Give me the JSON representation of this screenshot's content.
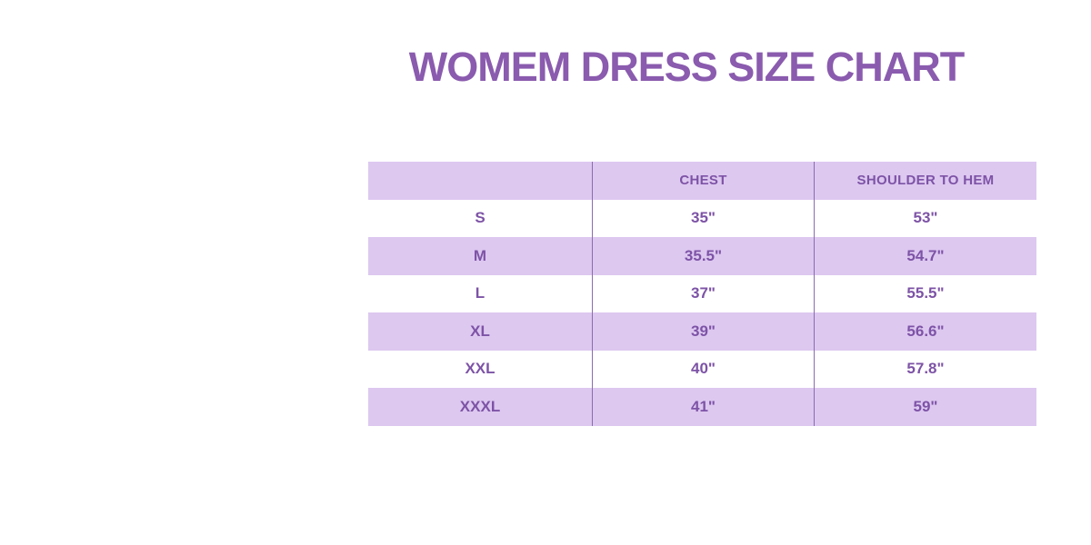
{
  "page": {
    "title": "WOMEM DRESS SIZE CHART"
  },
  "colors": {
    "background": "#ffffff",
    "title_purple": "#8a5bae",
    "band_purple": "#ddc8f0",
    "text_purple": "#7d53a6",
    "divider_purple": "#8b6cae"
  },
  "table": {
    "header": {
      "col1": "",
      "col2": "CHEST",
      "col3": "SHOULDER TO HEM"
    },
    "rows": [
      {
        "size": "S",
        "chest": "35\"",
        "shoulder_to_hem": "53\""
      },
      {
        "size": "M",
        "chest": "35.5\"",
        "shoulder_to_hem": "54.7\""
      },
      {
        "size": "L",
        "chest": "37\"",
        "shoulder_to_hem": "55.5\""
      },
      {
        "size": "XL",
        "chest": "39\"",
        "shoulder_to_hem": "56.6\""
      },
      {
        "size": "XXL",
        "chest": "40\"",
        "shoulder_to_hem": "57.8\""
      },
      {
        "size": "XXXL",
        "chest": "41\"",
        "shoulder_to_hem": "59\""
      }
    ]
  },
  "chart_data": {
    "type": "table",
    "title": "WOMEM DRESS SIZE CHART",
    "columns": [
      "",
      "CHEST",
      "SHOULDER TO HEM"
    ],
    "rows": [
      [
        "S",
        "35\"",
        "53\""
      ],
      [
        "M",
        "35.5\"",
        "54.7\""
      ],
      [
        "L",
        "37\"",
        "55.5\""
      ],
      [
        "XL",
        "39\"",
        "56.6\""
      ],
      [
        "XXL",
        "40\"",
        "57.8\""
      ],
      [
        "XXXL",
        "41\"",
        "59\""
      ]
    ],
    "layout": {
      "row_banding": [
        "header-band",
        "white",
        "band",
        "white",
        "band",
        "white",
        "band"
      ],
      "column_dividers": true,
      "outer_border": false
    }
  }
}
